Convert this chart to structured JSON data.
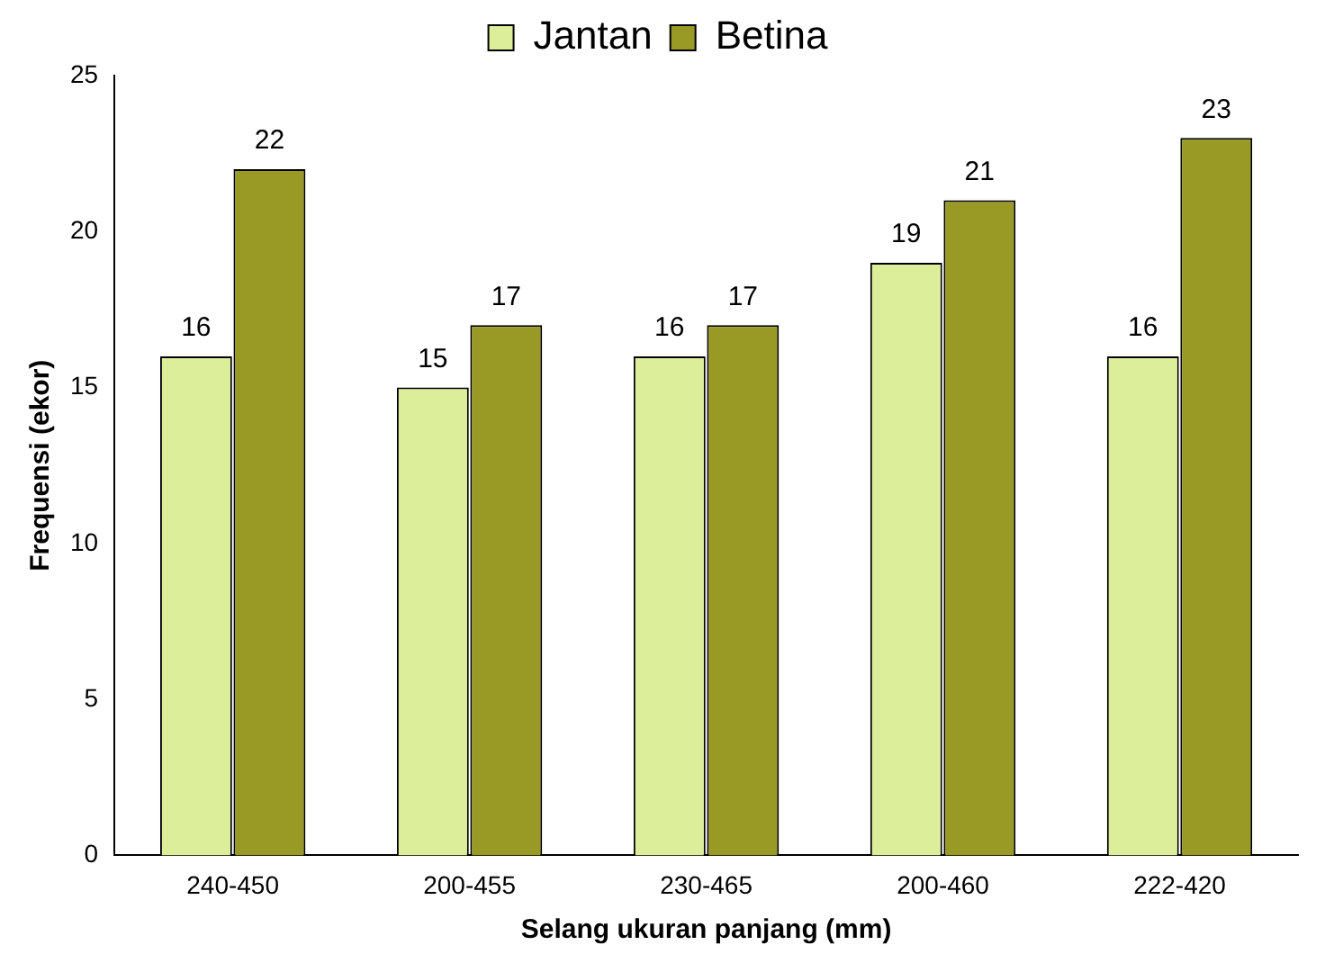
{
  "chart_data": {
    "type": "bar",
    "xlabel": "Selang ukuran panjang (mm)",
    "ylabel": "Frequensi (ekor)",
    "categories": [
      "240-450",
      "200-455",
      "230-465",
      "200-460",
      "222-420"
    ],
    "series": [
      {
        "name": "Jantan",
        "color": "#dcee9a",
        "values": [
          16,
          15,
          16,
          19,
          16
        ]
      },
      {
        "name": "Betina",
        "color": "#999926",
        "values": [
          22,
          17,
          17,
          21,
          23
        ]
      }
    ],
    "ylim": [
      0,
      25
    ],
    "yticks": [
      0,
      5,
      10,
      15,
      20,
      25
    ],
    "grid": false,
    "legend": "top",
    "data_labels": true
  }
}
